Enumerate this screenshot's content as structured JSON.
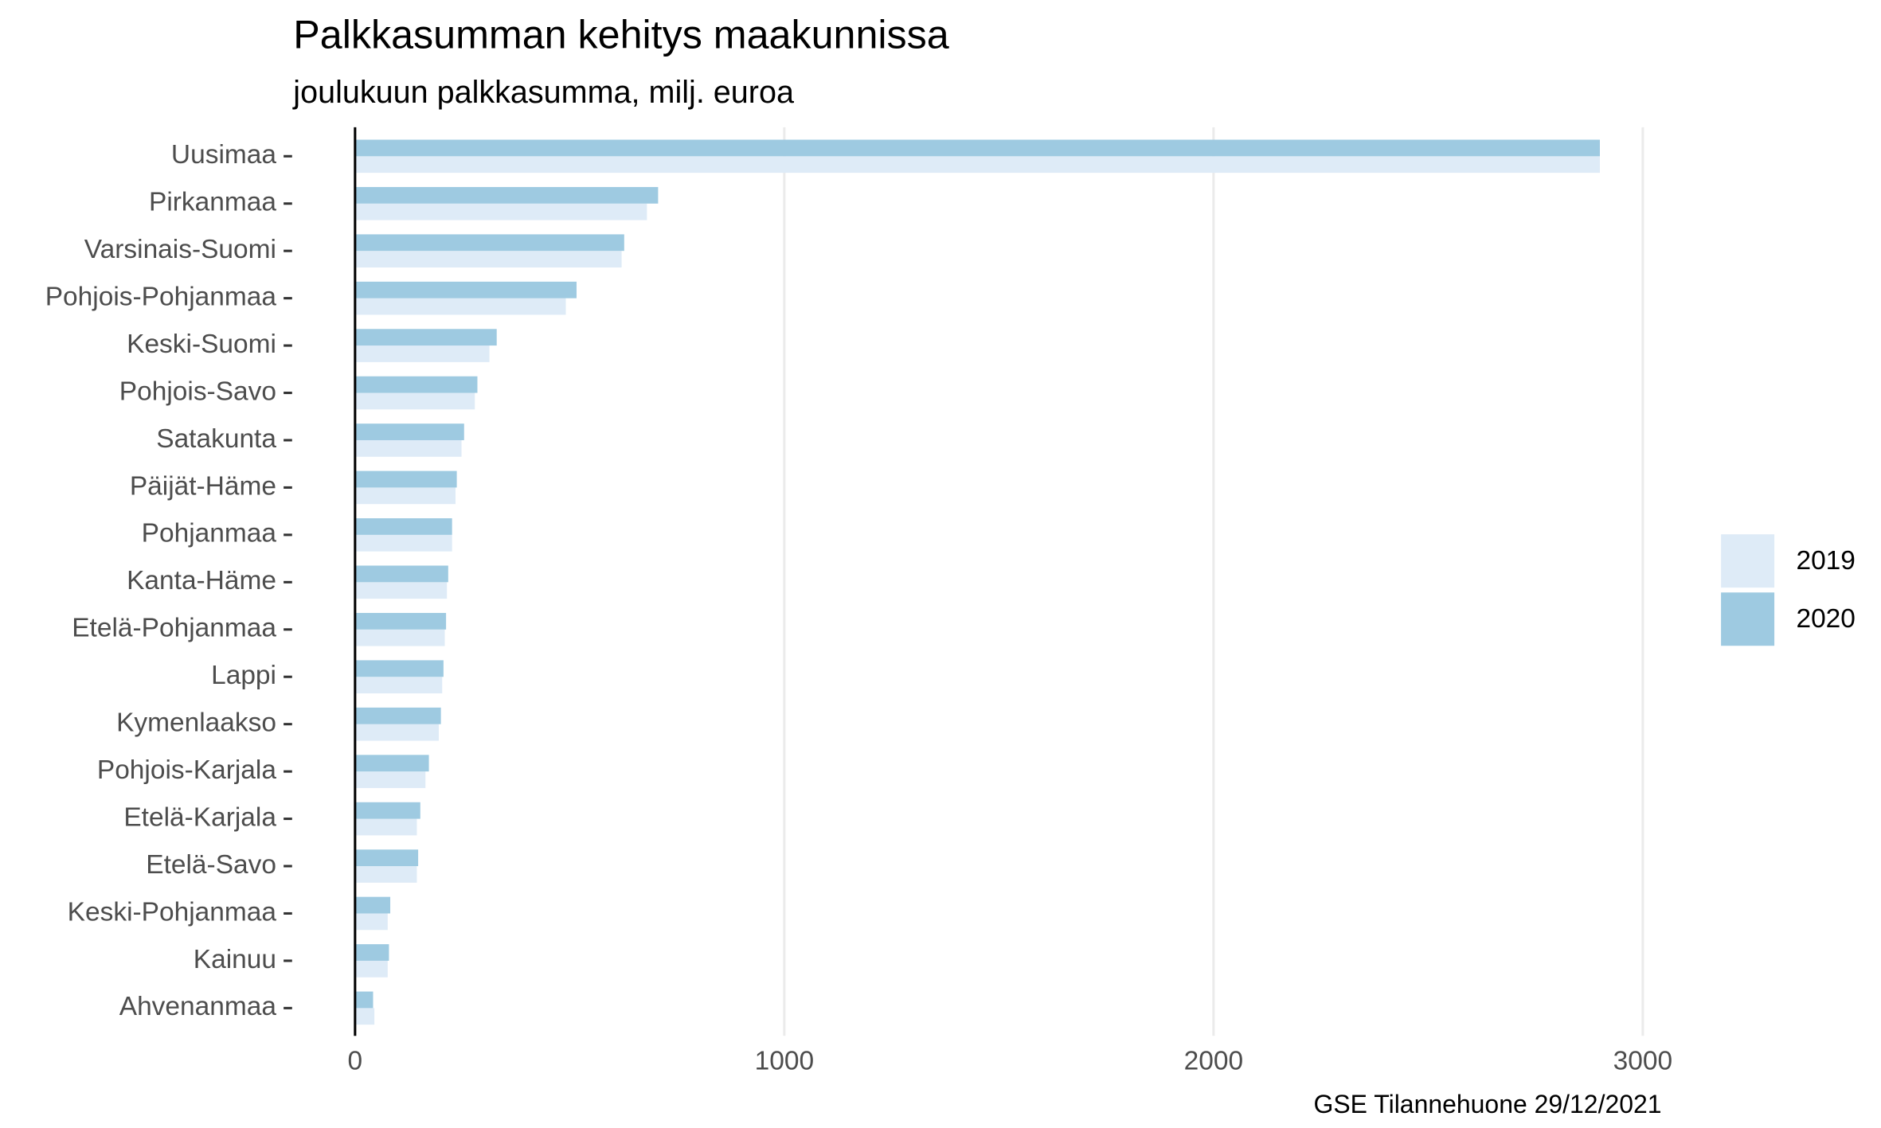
{
  "chart_data": {
    "type": "bar",
    "orientation": "horizontal",
    "title": "Palkkasumman kehitys maakunnissa",
    "subtitle": "joulukuun palkkasumma, milj. euroa",
    "caption": "GSE Tilannehuone 29/12/2021",
    "categories": [
      "Uusimaa",
      "Pirkanmaa",
      "Varsinais-Suomi",
      "Pohjois-Pohjanmaa",
      "Keski-Suomi",
      "Pohjois-Savo",
      "Satakunta",
      "Päijät-Häme",
      "Pohjanmaa",
      "Kanta-Häme",
      "Etelä-Pohjanmaa",
      "Lappi",
      "Kymenlaakso",
      "Pohjois-Karjala",
      "Etelä-Karjala",
      "Etelä-Savo",
      "Keski-Pohjanmaa",
      "Kainuu",
      "Ahvenanmaa"
    ],
    "series": [
      {
        "name": "2019",
        "color": "#deebf7",
        "values": [
          2900,
          680,
          621,
          491,
          313,
          279,
          248,
          234,
          226,
          214,
          209,
          203,
          195,
          164,
          144,
          144,
          76,
          76,
          45
        ]
      },
      {
        "name": "2020",
        "color": "#9ecae1",
        "values": [
          2900,
          706,
          627,
          516,
          330,
          285,
          254,
          237,
          226,
          217,
          212,
          206,
          200,
          172,
          152,
          147,
          82,
          79,
          42
        ]
      }
    ],
    "xlim": [
      -145,
      3045
    ],
    "xticks": [
      0,
      1000,
      2000,
      3000
    ],
    "grid": true,
    "legend": "right"
  }
}
